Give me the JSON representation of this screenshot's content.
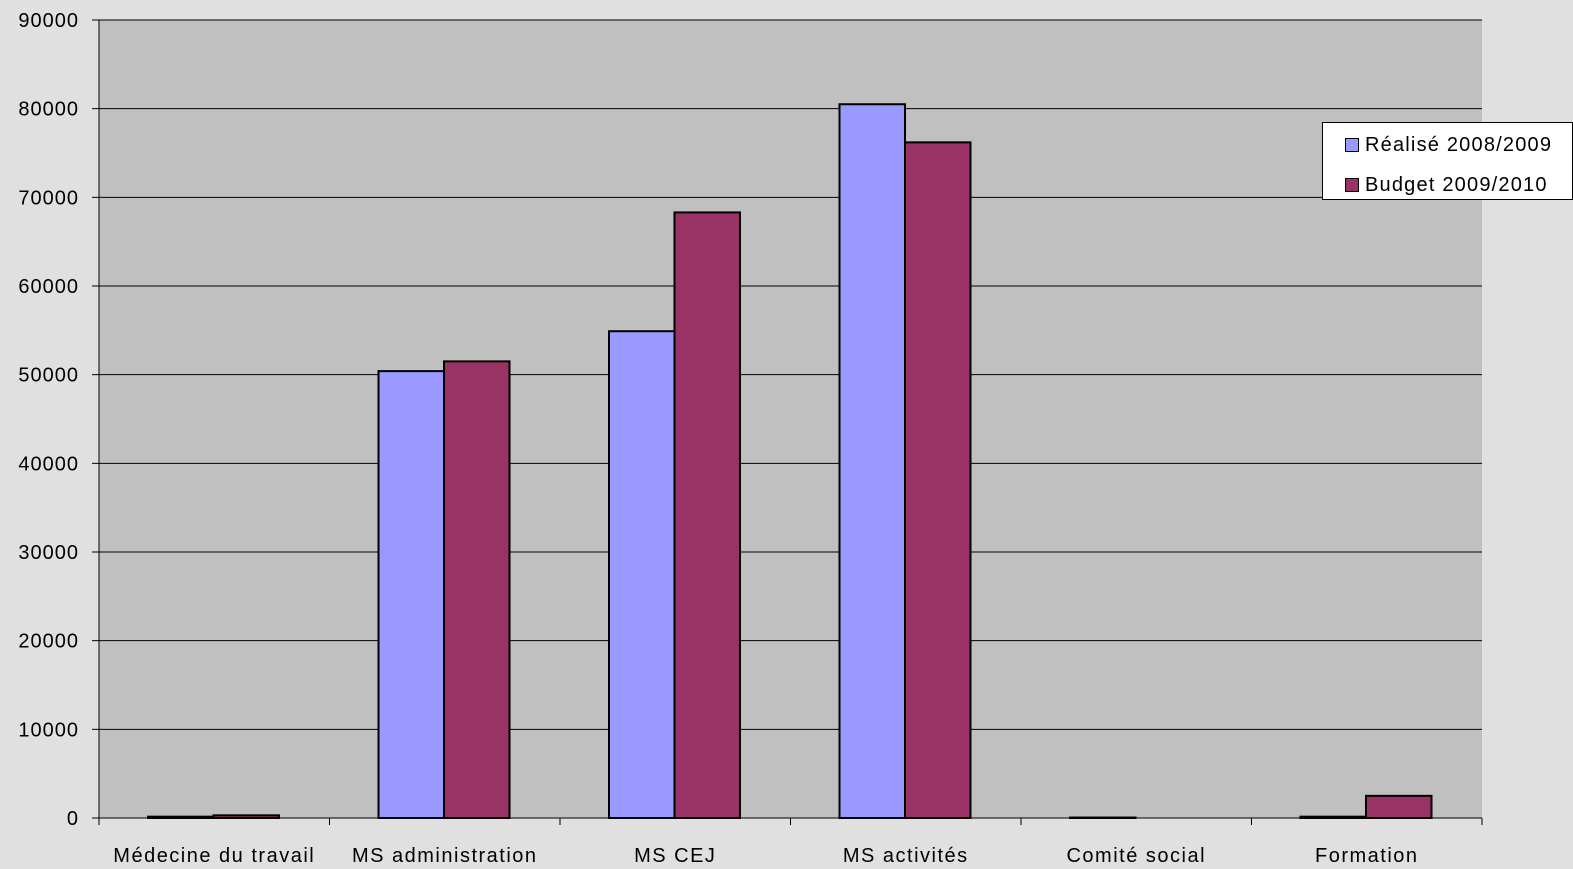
{
  "chart_data": {
    "type": "bar",
    "title": "",
    "xlabel": "",
    "ylabel": "",
    "categories": [
      "Médecine du travail",
      "MS administration",
      "MS CEJ",
      "MS activités",
      "Comité social",
      "Formation"
    ],
    "series": [
      {
        "name": "Réalisé 2008/2009",
        "color": "#9999ff",
        "values": [
          150,
          50400,
          54900,
          80500,
          50,
          150
        ]
      },
      {
        "name": "Budget 2009/2010",
        "color": "#993366",
        "values": [
          300,
          51500,
          68300,
          76200,
          0,
          2500
        ]
      }
    ],
    "ylim": [
      0,
      90000
    ],
    "yticks": [
      "0",
      "10000",
      "20000",
      "30000",
      "40000",
      "50000",
      "60000",
      "70000",
      "80000",
      "90000"
    ],
    "grid": true,
    "legend_position": "right",
    "plot_background": "#c0c0c0",
    "page_background": "#e0e0e0"
  }
}
